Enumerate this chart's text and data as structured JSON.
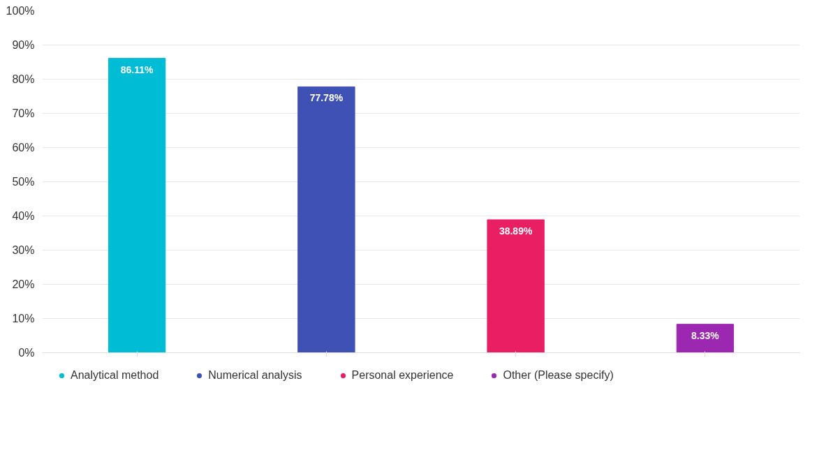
{
  "chart_data": {
    "type": "bar",
    "categories": [
      null,
      null,
      null,
      null
    ],
    "series": [
      {
        "name": "Analytical method",
        "color": "#00bcd4",
        "values": [
          86.11,
          null,
          null,
          null
        ],
        "value_labels": [
          "86.11%",
          null,
          null,
          null
        ]
      },
      {
        "name": "Numerical analysis",
        "color": "#3f51b5",
        "values": [
          null,
          77.78,
          null,
          null
        ],
        "value_labels": [
          null,
          "77.78%",
          null,
          null
        ]
      },
      {
        "name": "Personal experience",
        "color": "#e91e63",
        "values": [
          null,
          null,
          38.89,
          null
        ],
        "value_labels": [
          null,
          null,
          "38.89%",
          null
        ]
      },
      {
        "name": "Other (Please specify)",
        "color": "#9c27b0",
        "values": [
          null,
          null,
          null,
          8.33
        ],
        "value_labels": [
          null,
          null,
          null,
          "8.33%"
        ]
      }
    ],
    "ylim": [
      0,
      100
    ],
    "yticks": [
      {
        "value": 0,
        "label": "0%"
      },
      {
        "value": 10,
        "label": "10%"
      },
      {
        "value": 20,
        "label": "20%"
      },
      {
        "value": 30,
        "label": "30%"
      },
      {
        "value": 40,
        "label": "40%"
      },
      {
        "value": 50,
        "label": "50%"
      },
      {
        "value": 60,
        "label": "60%"
      },
      {
        "value": 70,
        "label": "70%"
      },
      {
        "value": 80,
        "label": "80%"
      },
      {
        "value": 90,
        "label": "90%"
      },
      {
        "value": 100,
        "label": "100%"
      }
    ],
    "grid": "y",
    "legend": "bottom"
  }
}
